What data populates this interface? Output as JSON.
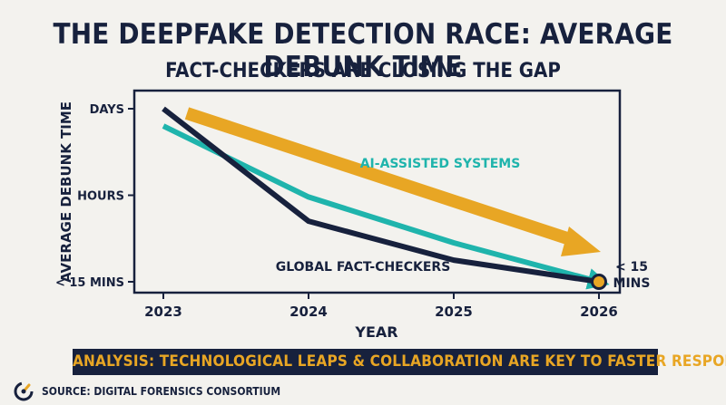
{
  "header": {
    "title": "THE DEEPFAKE DETECTION RACE: AVERAGE DEBUNK TIME",
    "subtitle": "FACT-CHECKERS ARE CLOSING THE GAP"
  },
  "chart_data": {
    "type": "line",
    "ylabel": "AVERAGE DEBUNK TIME",
    "xlabel": "YEAR",
    "x": [
      2023,
      2024,
      2025,
      2026
    ],
    "x_ticks": [
      "2023",
      "2024",
      "2025",
      "2026"
    ],
    "y_ticks": [
      "< 15 MINS",
      "HOURS",
      "DAYS"
    ],
    "y_scale": "ordinal time scale (0 = < 15 mins, 1 = hours, 2 = days)",
    "ylim": [
      0,
      2
    ],
    "grid": false,
    "series": [
      {
        "name": "GLOBAL FACT-CHECKERS",
        "color": "#17213d",
        "x": [
          2023,
          2024,
          2025,
          2026
        ],
        "y": [
          2.0,
          0.7,
          0.25,
          0.0
        ]
      },
      {
        "name": "AI-ASSISTED SYSTEMS",
        "color": "#1fb4ac",
        "x": [
          2023,
          2024,
          2025,
          2026
        ],
        "y": [
          1.8,
          0.98,
          0.45,
          0.0
        ]
      }
    ],
    "annotations": {
      "endpoint_label_line1": "< 15",
      "endpoint_label_line2": "MINS",
      "trend_arrow_color": "#e8a624"
    }
  },
  "banner": {
    "text": "ANALYSIS: TECHNOLOGICAL LEAPS & COLLABORATION ARE KEY TO FASTER RESPONSE"
  },
  "footer": {
    "source": "SOURCE: DIGITAL FORENSICS CONSORTIUM",
    "icon": "gauge-logo-icon"
  },
  "colors": {
    "navy": "#17213d",
    "teal": "#1fb4ac",
    "amber": "#e8a624",
    "background": "#f3f2ee"
  }
}
